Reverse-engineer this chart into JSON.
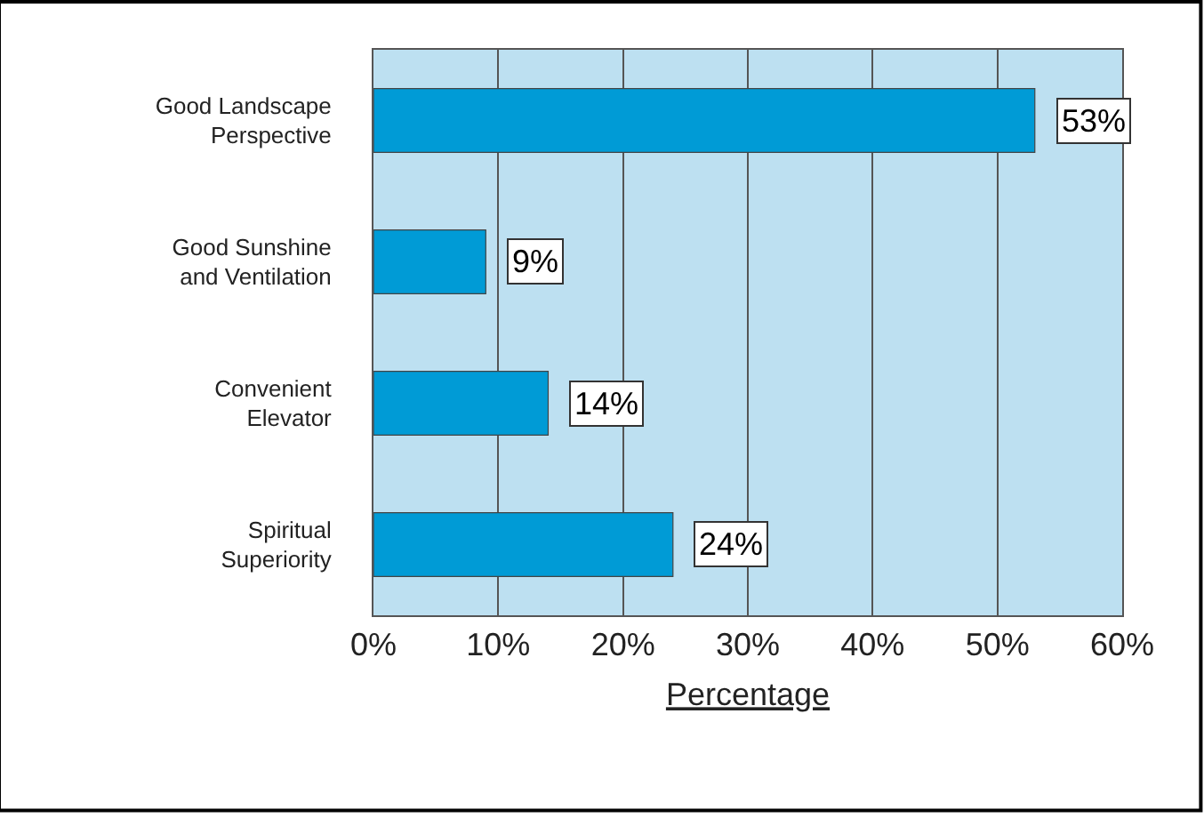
{
  "chart_data": {
    "type": "bar",
    "orientation": "horizontal",
    "xlabel": "Percentage",
    "categories": [
      "Good Landscape\nPerspective",
      "Good Sunshine\nand Ventilation",
      "Convenient\nElevator",
      "Spiritual\nSuperiority"
    ],
    "values": [
      53,
      9,
      14,
      24
    ],
    "value_labels": [
      "53%",
      "9%",
      "14%",
      "24%"
    ],
    "color": "#009bd6",
    "xlim": [
      0,
      60
    ],
    "xticks": [
      {
        "value": 0,
        "label": "0%"
      },
      {
        "value": 10,
        "label": "10%"
      },
      {
        "value": 20,
        "label": "20%"
      },
      {
        "value": 30,
        "label": "30%"
      },
      {
        "value": 40,
        "label": "40%"
      },
      {
        "value": 50,
        "label": "50%"
      },
      {
        "value": 60,
        "label": "60%"
      }
    ],
    "grid": "x",
    "legend": false
  }
}
